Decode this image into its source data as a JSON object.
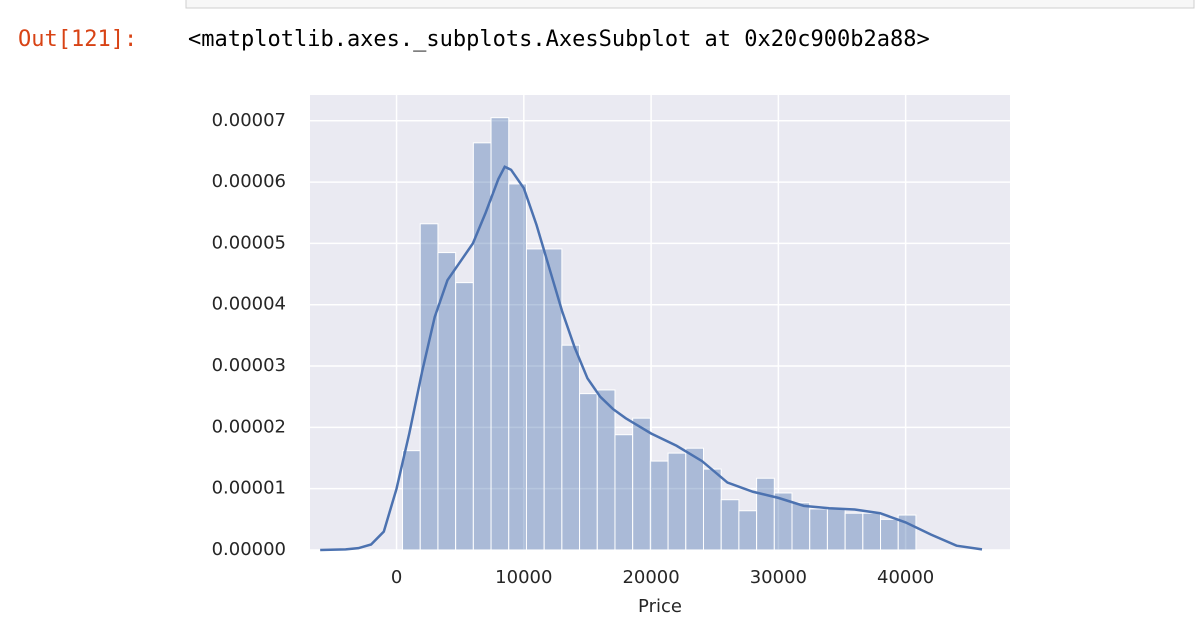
{
  "prompt": "Out[121]:",
  "output_text": "<matplotlib.axes._subplots.AxesSubplot at 0x20c900b2a88>",
  "chart_data": {
    "type": "histogram",
    "xlabel": "Price",
    "bins": [
      470,
      1861,
      3252,
      4643,
      6034,
      7425,
      8816,
      10207,
      11598,
      12989,
      14380,
      15771,
      17162,
      18553,
      19944,
      21335,
      22726,
      24117,
      25508,
      26899,
      28290,
      29681,
      31072,
      32463,
      33854,
      35245,
      36636,
      38027,
      39418,
      40809
    ],
    "values": [
      1.62e-05,
      5.32e-05,
      4.85e-05,
      4.36e-05,
      6.64e-05,
      7.05e-05,
      5.97e-05,
      4.91e-05,
      4.91e-05,
      3.34e-05,
      2.55e-05,
      2.61e-05,
      1.88e-05,
      2.15e-05,
      1.45e-05,
      1.58e-05,
      1.66e-05,
      1.32e-05,
      8.2e-06,
      6.4e-06,
      1.17e-05,
      9.3e-06,
      7.7e-06,
      6.7e-06,
      6.7e-06,
      6e-06,
      6e-06,
      5e-06,
      5.7e-06
    ],
    "color": "#4c72b0",
    "kde": {
      "color": "#4c72b0",
      "x": [
        -6000,
        -4000,
        -3000,
        -2000,
        -1000,
        0,
        1000,
        2000,
        3000,
        4000,
        5000,
        6000,
        7000,
        8000,
        8500,
        9000,
        10000,
        11000,
        12000,
        13000,
        14000,
        15000,
        16000,
        17000,
        18000,
        20000,
        22000,
        24000,
        26000,
        28000,
        30000,
        32000,
        34000,
        36000,
        38000,
        40000,
        42000,
        44000,
        46000
      ],
      "values": [
        0,
        1e-07,
        3e-07,
        9e-07,
        3e-06,
        1e-05,
        1.9e-05,
        2.9e-05,
        3.8e-05,
        4.4e-05,
        4.7e-05,
        5e-05,
        5.5e-05,
        6.05e-05,
        6.25e-05,
        6.2e-05,
        5.9e-05,
        5.3e-05,
        4.6e-05,
        3.9e-05,
        3.3e-05,
        2.8e-05,
        2.5e-05,
        2.3e-05,
        2.15e-05,
        1.9e-05,
        1.7e-05,
        1.45e-05,
        1.1e-05,
        9.5e-06,
        8.5e-06,
        7.2e-06,
        6.8e-06,
        6.6e-06,
        6e-06,
        4.5e-06,
        2.5e-06,
        7e-07,
        1e-07
      ]
    },
    "xlim": [
      -6800,
      48200
    ],
    "ylim": [
      0,
      7.42e-05
    ],
    "xticks": [
      0,
      10000,
      20000,
      30000,
      40000
    ],
    "yticks": [
      {
        "value": 0,
        "label": "0.00000"
      },
      {
        "value": 1e-05,
        "label": "0.00001"
      },
      {
        "value": 2e-05,
        "label": "0.00002"
      },
      {
        "value": 3e-05,
        "label": "0.00003"
      },
      {
        "value": 4e-05,
        "label": "0.00004"
      },
      {
        "value": 5e-05,
        "label": "0.00005"
      },
      {
        "value": 6e-05,
        "label": "0.00006"
      },
      {
        "value": 7e-05,
        "label": "0.00007"
      }
    ],
    "grid": true
  }
}
